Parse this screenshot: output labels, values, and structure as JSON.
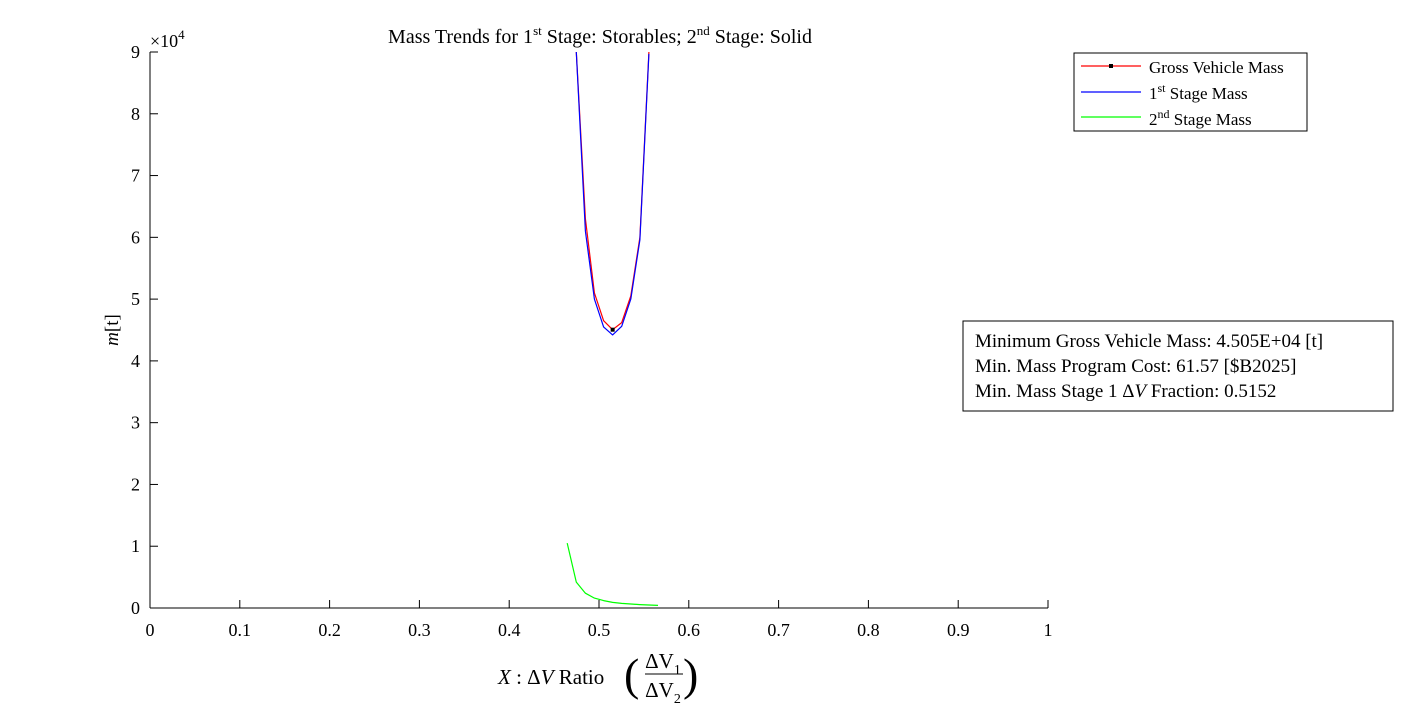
{
  "chart_data": {
    "type": "line",
    "title": {
      "prefix": "Mass Trends for 1",
      "sup1": "st",
      "middle": " Stage: Storables; 2",
      "sup2": "nd",
      "suffix": " Stage: Solid"
    },
    "xlabel": {
      "var": "X",
      "colon": " : ",
      "delta": "Δ",
      "v": "V",
      "ratio": " Ratio ",
      "num": "ΔV",
      "num_sub": "1",
      "den": "ΔV",
      "den_sub": "2"
    },
    "ylabel": {
      "var": "m",
      "unit": "[t]"
    },
    "y_exponent": {
      "base": "×10",
      "power": "4"
    },
    "xlim": [
      0,
      1
    ],
    "ylim": [
      0,
      90000
    ],
    "x_ticks": [
      0,
      0.1,
      0.2,
      0.3,
      0.4,
      0.5,
      0.6,
      0.7,
      0.8,
      0.9,
      1
    ],
    "x_tick_labels": [
      "0",
      "0.1",
      "0.2",
      "0.3",
      "0.4",
      "0.5",
      "0.6",
      "0.7",
      "0.8",
      "0.9",
      "1"
    ],
    "y_ticks": [
      0,
      10000,
      20000,
      30000,
      40000,
      50000,
      60000,
      70000,
      80000,
      90000
    ],
    "y_tick_labels": [
      "0",
      "1",
      "2",
      "3",
      "4",
      "5",
      "6",
      "7",
      "8",
      "9"
    ],
    "grid": false,
    "legend_position": "top-right",
    "series": [
      {
        "name": "Gross Vehicle Mass",
        "name_parts": {
          "prefix": "Gross Vehicle Mass",
          "sup": "",
          "suffix": ""
        },
        "color": "#ff0000",
        "x": [
          0.4747,
          0.4848,
          0.4949,
          0.5051,
          0.5152,
          0.5253,
          0.5354,
          0.5455,
          0.5556
        ],
        "y": [
          90000,
          63000,
          51000,
          46500,
          45050,
          46200,
          50500,
          60000,
          90000
        ]
      },
      {
        "name": "1st Stage Mass",
        "name_parts": {
          "prefix": "1",
          "sup": "st",
          "suffix": " Stage Mass"
        },
        "color": "#0000ff",
        "x": [
          0.4747,
          0.4848,
          0.4949,
          0.5051,
          0.5152,
          0.5253,
          0.5354,
          0.5455,
          0.5556
        ],
        "y": [
          90000,
          61000,
          50000,
          45500,
          44200,
          45600,
          50000,
          59600,
          89700
        ]
      },
      {
        "name": "2nd Stage Mass",
        "name_parts": {
          "prefix": "2",
          "sup": "nd",
          "suffix": " Stage Mass"
        },
        "color": "#00ff00",
        "x": [
          0.4646,
          0.4747,
          0.4848,
          0.4949,
          0.5051,
          0.5152,
          0.5253,
          0.5354,
          0.5455,
          0.5556,
          0.5657
        ],
        "y": [
          10500,
          4200,
          2400,
          1600,
          1200,
          900,
          750,
          650,
          550,
          480,
          420
        ]
      }
    ],
    "marker": {
      "series": "Gross Vehicle Mass",
      "x": 0.5152,
      "y": 45050,
      "color": "#000000"
    },
    "annotation": {
      "line1": "Minimum Gross Vehicle Mass: 4.505E+04 [t]",
      "line2": "Min. Mass Program Cost: 61.57 [$B2025]",
      "line3": {
        "prefix": "Min. Mass Stage 1 ",
        "delta": "Δ",
        "v": "V",
        "suffix": " Fraction: 0.5152"
      }
    }
  }
}
